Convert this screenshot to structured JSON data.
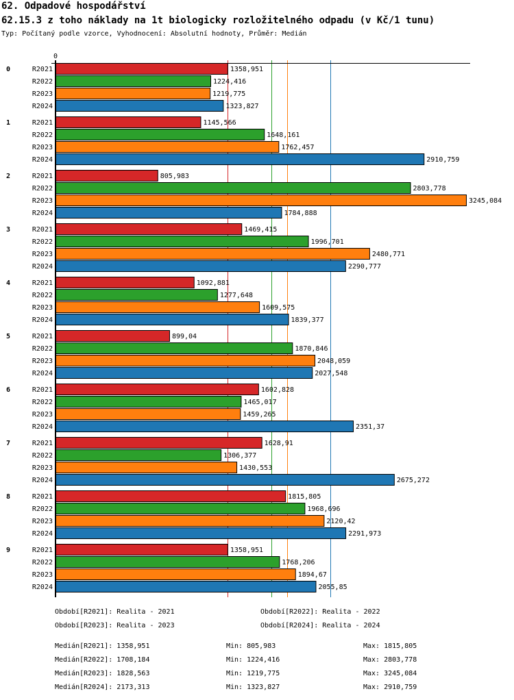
{
  "header": {
    "title": "62. Odpadové hospodářství",
    "subtitle": "62.15.3 z toho náklady na 1t biologicky rozložitelného odpadu (v Kč/1 tunu)",
    "info": "Typ: Počítaný podle vzorce, Vyhodnocení: Absolutní hodnoty, Průměr: Medián"
  },
  "chart_data": {
    "type": "bar",
    "orientation": "horizontal",
    "x_tick_label": "0",
    "xlim": [
      0,
      3245.084
    ],
    "categories": [
      "0",
      "1",
      "2",
      "3",
      "4",
      "5",
      "6",
      "7",
      "8",
      "9"
    ],
    "series": [
      {
        "name": "R2021",
        "color": "#d62728",
        "values": [
          1358.951,
          1145.566,
          805.983,
          1469.415,
          1092.881,
          899.04,
          1602.828,
          1628.91,
          1815.805,
          1358.951
        ],
        "labels": [
          "1358,951",
          "1145,566",
          "805,983",
          "1469,415",
          "1092,881",
          "899,04",
          "1602,828",
          "1628,91",
          "1815,805",
          "1358,951"
        ]
      },
      {
        "name": "R2022",
        "color": "#2ca02c",
        "values": [
          1224.416,
          1648.161,
          2803.778,
          1996.701,
          1277.648,
          1870.846,
          1465.017,
          1306.377,
          1968.696,
          1768.206
        ],
        "labels": [
          "1224,416",
          "1648,161",
          "2803,778",
          "1996,701",
          "1277,648",
          "1870,846",
          "1465,017",
          "1306,377",
          "1968,696",
          "1768,206"
        ]
      },
      {
        "name": "R2023",
        "color": "#ff7f0e",
        "values": [
          1219.775,
          1762.457,
          3245.084,
          2480.771,
          1609.575,
          2048.059,
          1459.265,
          1430.553,
          2120.42,
          1894.67
        ],
        "labels": [
          "1219,775",
          "1762,457",
          "3245,084",
          "2480,771",
          "1609,575",
          "2048,059",
          "1459,265",
          "1430,553",
          "2120,42",
          "1894,67"
        ]
      },
      {
        "name": "R2024",
        "color": "#1f77b4",
        "values": [
          1323.827,
          2910.759,
          1784.888,
          2290.777,
          1839.377,
          2027.548,
          2351.37,
          2675.272,
          2291.973,
          2055.85
        ],
        "labels": [
          "1323,827",
          "2910,759",
          "1784,888",
          "2290,777",
          "1839,377",
          "2027,548",
          "2351,37",
          "2675,272",
          "2291,973",
          "2055,85"
        ]
      }
    ],
    "median_lines": [
      1358.951,
      1708.184,
      1828.563,
      2173.313
    ]
  },
  "legend": [
    "Období[R2021]: Realita - 2021",
    "Období[R2022]: Realita - 2022",
    "Období[R2023]: Realita - 2023",
    "Období[R2024]: Realita - 2024"
  ],
  "stats": [
    {
      "median": "Medián[R2021]: 1358,951",
      "min": "Min: 805,983",
      "max": "Max: 1815,805"
    },
    {
      "median": "Medián[R2022]: 1708,184",
      "min": "Min: 1224,416",
      "max": "Max: 2803,778"
    },
    {
      "median": "Medián[R2023]: 1828,563",
      "min": "Min: 1219,775",
      "max": "Max: 3245,084"
    },
    {
      "median": "Medián[R2024]: 2173,313",
      "min": "Min: 1323,827",
      "max": "Max: 2910,759"
    }
  ]
}
